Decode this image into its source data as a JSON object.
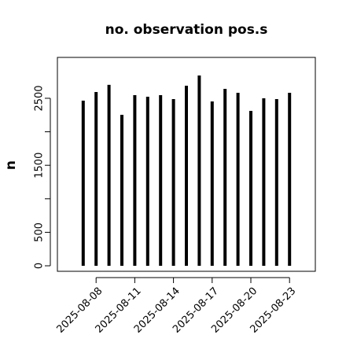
{
  "chart_data": {
    "type": "h",
    "title": "no. observation pos.s",
    "y_label": "n",
    "x": [
      "2025-08-07",
      "2025-08-08",
      "2025-08-09",
      "2025-08-10",
      "2025-08-11",
      "2025-08-12",
      "2025-08-13",
      "2025-08-14",
      "2025-08-15",
      "2025-08-16",
      "2025-08-17",
      "2025-08-18",
      "2025-08-19",
      "2025-08-20",
      "2025-08-21",
      "2025-08-22",
      "2025-08-23"
    ],
    "values": [
      2465,
      2594,
      2700,
      2254,
      2547,
      2523,
      2547,
      2488,
      2688,
      2840,
      2453,
      2641,
      2582,
      2312,
      2500,
      2488,
      2582
    ],
    "color": "#000000",
    "xlim": [
      "2025-08-05",
      "2025-08-25"
    ],
    "xticks": [
      "2025-08-08",
      "2025-08-11",
      "2025-08-14",
      "2025-08-17",
      "2025-08-20",
      "2025-08-23"
    ],
    "xtick_colors": [
      "#000000",
      "#000000",
      "#228b22",
      "#000000",
      "#000000",
      "#000000"
    ],
    "ylim": [
      -82,
      3110
    ],
    "yticks": [
      0,
      500,
      1500,
      2500
    ],
    "yminor_ticks": [
      1000,
      2000
    ]
  }
}
